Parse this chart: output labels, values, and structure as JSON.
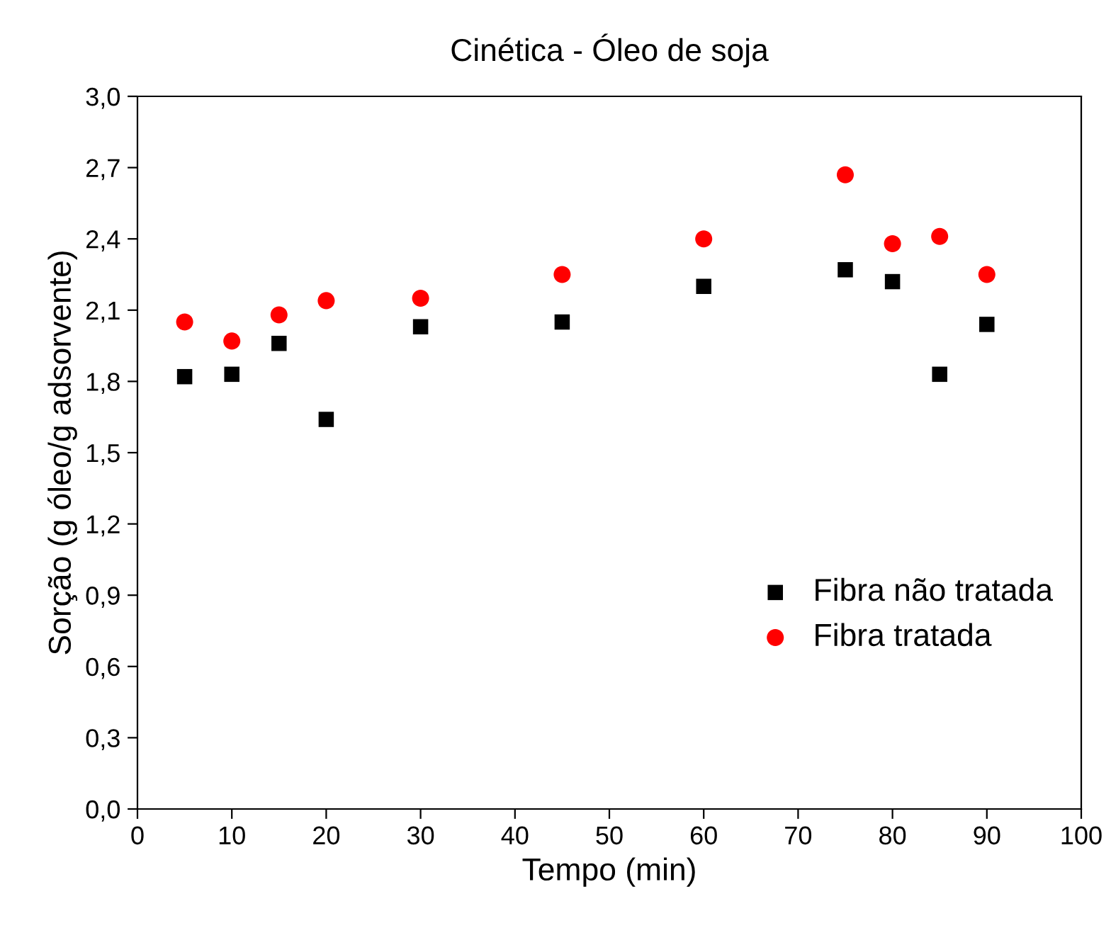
{
  "chart_data": {
    "type": "scatter",
    "title": "Cinética - Óleo de soja",
    "xlabel": "Tempo (min)",
    "ylabel": "Sorção (g óleo/g adsorvente)",
    "x": [
      5,
      10,
      15,
      20,
      30,
      45,
      60,
      75,
      80,
      85,
      90
    ],
    "series": [
      {
        "name": "Fibra não tratada",
        "color": "#000000",
        "marker": "square",
        "values": [
          1.82,
          1.83,
          1.96,
          1.64,
          2.03,
          2.05,
          2.2,
          2.27,
          2.22,
          1.83,
          2.04
        ]
      },
      {
        "name": "Fibra tratada",
        "color": "#ff0000",
        "marker": "circle",
        "values": [
          2.05,
          1.97,
          2.08,
          2.14,
          2.15,
          2.25,
          2.4,
          2.67,
          2.38,
          2.41,
          2.25
        ]
      }
    ],
    "xlim": [
      0,
      100
    ],
    "xticks": [
      0,
      10,
      20,
      30,
      40,
      50,
      60,
      70,
      80,
      90,
      100
    ],
    "ylim": [
      0,
      3
    ],
    "yticks": [
      {
        "value": 0,
        "label": "0,0"
      },
      {
        "value": 0.3,
        "label": "0,3"
      },
      {
        "value": 0.6,
        "label": "0,6"
      },
      {
        "value": 0.9,
        "label": "0,9"
      },
      {
        "value": 1.2,
        "label": "1,2"
      },
      {
        "value": 1.5,
        "label": "1,5"
      },
      {
        "value": 1.8,
        "label": "1,8"
      },
      {
        "value": 2.1,
        "label": "2,1"
      },
      {
        "value": 2.4,
        "label": "2,4"
      },
      {
        "value": 2.7,
        "label": "2,7"
      },
      {
        "value": 3.0,
        "label": "3,0"
      }
    ],
    "grid": false,
    "legend": "bottom right"
  }
}
